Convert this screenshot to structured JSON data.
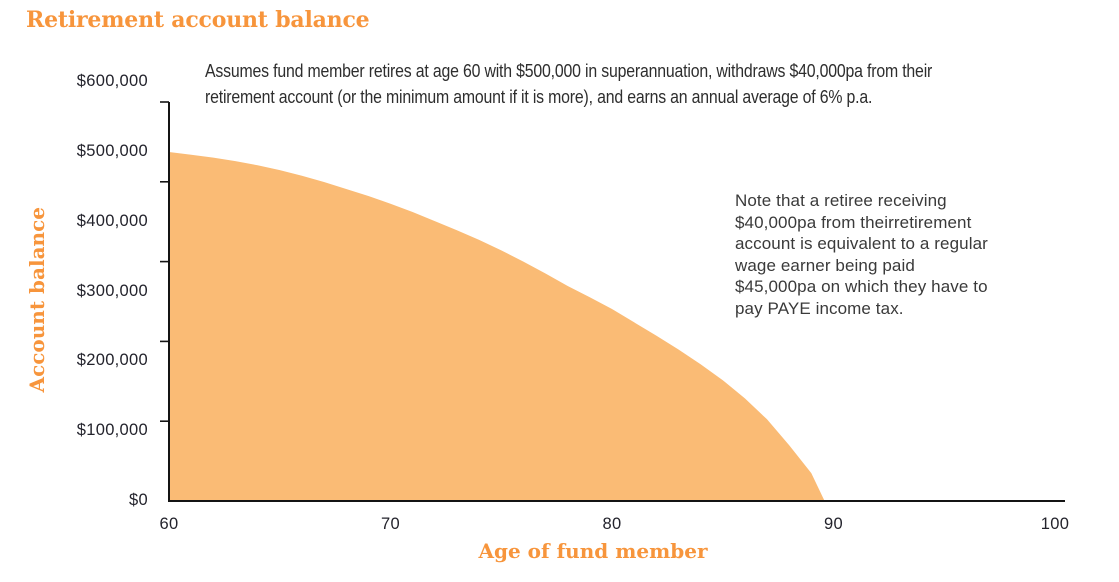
{
  "title": {
    "text": "Retirement account balance",
    "color": "#f7953c"
  },
  "subtitle": {
    "text": "Assumes fund member retires at age 60 with $500,000 in superannuation, withdraws $40,000pa from their\nretirement account (or the minimum amount if it is more), and earns an annual average of 6% p.a."
  },
  "annotation": {
    "text": "Note that a retiree receiving\n$40,000pa from theirretirement\naccount is equivalent to a regular\nwage earner being paid\n$45,000pa on which they have to\npay PAYE income tax."
  },
  "chart_data": {
    "type": "area",
    "title": "Retirement account balance",
    "xlabel": "Age of fund member",
    "ylabel": "Account balance",
    "xlim": [
      60,
      100
    ],
    "ylim": [
      0,
      600000
    ],
    "grid": false,
    "legend": "none",
    "x_tick_labels": [
      "60",
      "70",
      "80",
      "90",
      "100"
    ],
    "x_tick_values": [
      60,
      70,
      80,
      90,
      100
    ],
    "y_tick_labels": [
      "$600,000",
      "$500,000",
      "$400,000",
      "$300,000",
      "$200,000",
      "$100,000",
      "$0"
    ],
    "y_tick_values": [
      600000,
      500000,
      400000,
      300000,
      200000,
      100000,
      0
    ],
    "area_color": "#fabb75",
    "axis_color": "#141414",
    "series": [
      {
        "name": "Account balance",
        "x": [
          60,
          61,
          62,
          63,
          64,
          65,
          66,
          67,
          68,
          69,
          70,
          71,
          72,
          73,
          74,
          75,
          76,
          77,
          78,
          79,
          80,
          81,
          82,
          83,
          84,
          85,
          86,
          87,
          88,
          89,
          89.6
        ],
        "y": [
          500000,
          496000,
          492000,
          487000,
          481000,
          474000,
          466000,
          457000,
          447000,
          437000,
          426000,
          414000,
          401000,
          388000,
          374000,
          359000,
          343000,
          326000,
          308000,
          292000,
          275000,
          256000,
          237000,
          217000,
          196000,
          173000,
          147000,
          117000,
          80000,
          40000,
          0
        ]
      }
    ]
  }
}
